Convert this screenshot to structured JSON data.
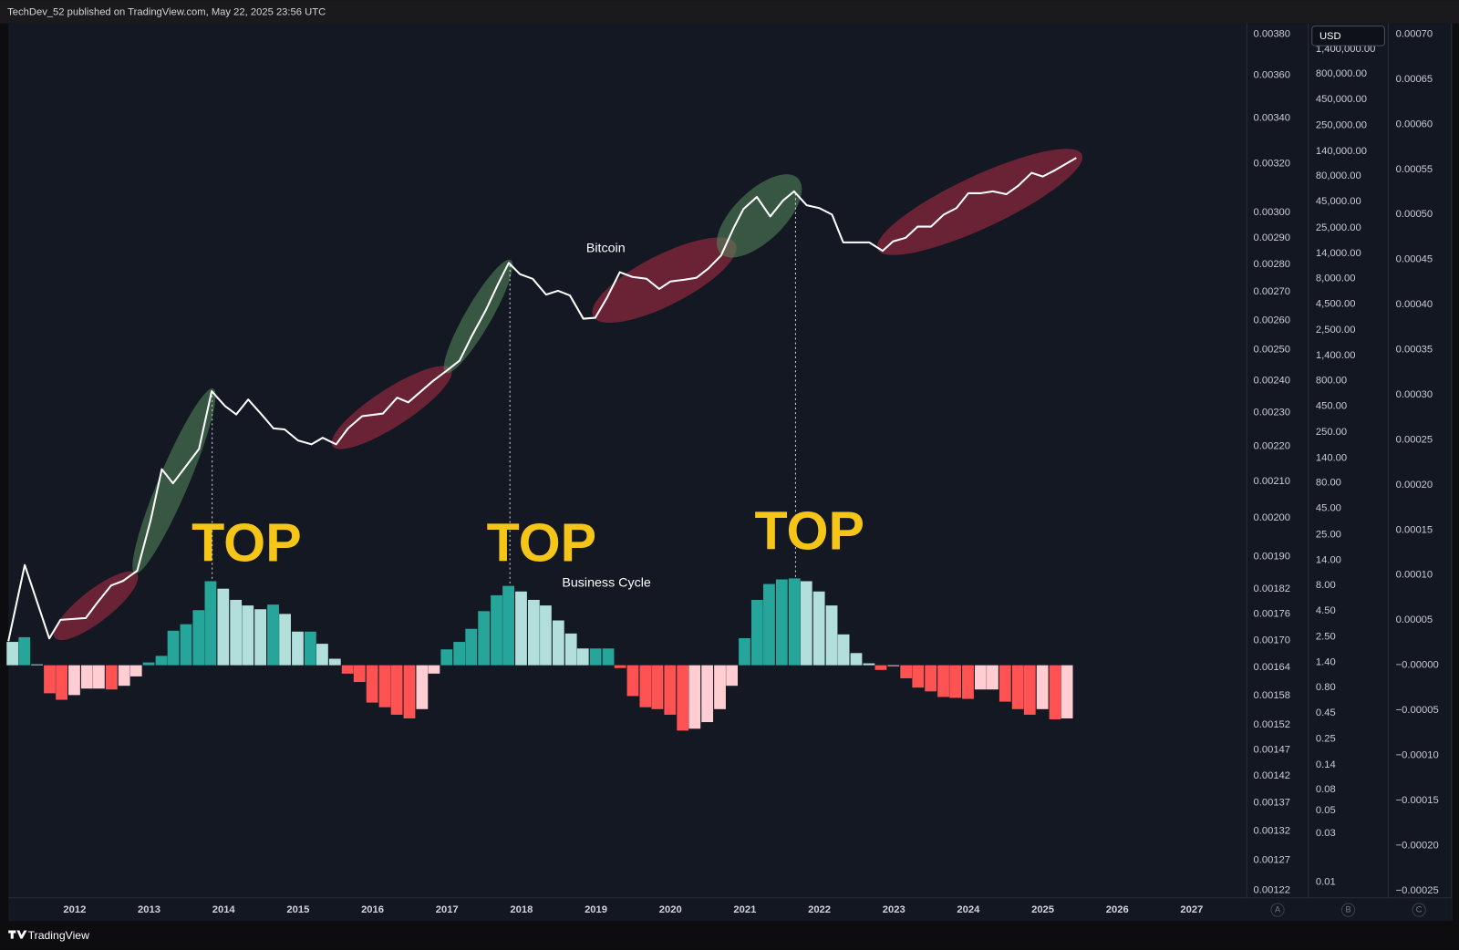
{
  "page": {
    "header": "TechDev_52 published on TradingView.com, May 22, 2025 23:56 UTC",
    "footer": "TradingView",
    "currency": "USD",
    "axis_letters": [
      "A",
      "B",
      "C"
    ]
  },
  "chart_data": [
    {
      "type": "line",
      "title": "Bitcoin",
      "color": "#ffffff",
      "log_scale": true,
      "grid": false,
      "annotations": [
        "TOP",
        "TOP",
        "TOP"
      ],
      "x": [
        2011.11,
        2011.33,
        2011.66,
        2011.81,
        2012.15,
        2012.31,
        2012.49,
        2012.65,
        2012.84,
        2013.02,
        2013.17,
        2013.32,
        2013.67,
        2013.84,
        2014.02,
        2014.17,
        2014.33,
        2014.51,
        2014.67,
        2014.82,
        2015.0,
        2015.18,
        2015.33,
        2015.51,
        2015.67,
        2015.86,
        2016.14,
        2016.33,
        2016.48,
        2016.81,
        2017.01,
        2017.17,
        2017.33,
        2017.52,
        2017.69,
        2017.83,
        2017.98,
        2018.15,
        2018.33,
        2018.49,
        2018.65,
        2018.83,
        2018.99,
        2019.15,
        2019.32,
        2019.49,
        2019.68,
        2019.85,
        2020.0,
        2020.19,
        2020.35,
        2020.51,
        2020.68,
        2020.85,
        2020.98,
        2021.16,
        2021.34,
        2021.51,
        2021.66,
        2021.83,
        2022.0,
        2022.17,
        2022.32,
        2022.67,
        2022.85,
        2022.99,
        2023.16,
        2023.32,
        2023.5,
        2023.67,
        2023.84,
        2024.0,
        2024.17,
        2024.33,
        2024.51,
        2024.67,
        2024.85,
        2025.0,
        2025.17,
        2025.45
      ],
      "values": [
        2.26,
        12.6,
        2.41,
        3.66,
        3.82,
        5.45,
        7.94,
        8.82,
        11.1,
        34.4,
        109,
        79.4,
        172,
        631,
        452,
        374,
        523,
        374,
        273,
        267,
        208,
        191,
        221,
        191,
        273,
        359,
        382,
        545,
        491,
        794,
        1020,
        1260,
        2170,
        3900,
        7160,
        11350,
        8810,
        7940,
        5560,
        6050,
        5450,
        3230,
        3300,
        5220,
        9200,
        8280,
        7940,
        6310,
        7460,
        7780,
        8110,
        10000,
        13400,
        25100,
        38200,
        50100,
        32300,
        46100,
        56900,
        41500,
        39000,
        33700,
        18000,
        18000,
        14900,
        18400,
        20000,
        25700,
        25700,
        33700,
        39000,
        54500,
        54500,
        56900,
        53300,
        64400,
        86300,
        79400,
        92000,
        120800
      ],
      "xlim": [
        2011.11,
        2027.74
      ],
      "xticks": [
        2012,
        2013,
        2014,
        2015,
        2016,
        2017,
        2018,
        2019,
        2020,
        2021,
        2022,
        2023,
        2024,
        2025,
        2026,
        2027
      ],
      "ylim": [
        0.007,
        2500000
      ],
      "yticks": [
        0.01,
        0.03,
        0.05,
        0.08,
        0.14,
        0.25,
        0.45,
        {
          "value": 0.8,
          "label": "0.80"
        },
        {
          "value": 1.4,
          "label": "1.40"
        },
        {
          "value": 2.5,
          "label": "2.50"
        },
        {
          "value": 4.5,
          "label": "4.50"
        },
        {
          "value": 8,
          "label": "8.00"
        },
        {
          "value": 14,
          "label": "14.00"
        },
        {
          "value": 25,
          "label": "25.00"
        },
        {
          "value": 45,
          "label": "45.00"
        },
        {
          "value": 80,
          "label": "80.00"
        },
        {
          "value": 140,
          "label": "140.00"
        },
        {
          "value": 250,
          "label": "250.00"
        },
        {
          "value": 450,
          "label": "450.00"
        },
        {
          "value": 800,
          "label": "800.00"
        },
        {
          "value": 1400,
          "label": "1,400.00"
        },
        {
          "value": 2500,
          "label": "2,500.00"
        },
        {
          "value": 4500,
          "label": "4,500.00"
        },
        {
          "value": 8000,
          "label": "8,000.00"
        },
        {
          "value": 14000,
          "label": "14,000.00"
        },
        {
          "value": 25000,
          "label": "25,000.00"
        },
        {
          "value": 45000,
          "label": "45,000.00"
        },
        {
          "value": 80000,
          "label": "80,000.00"
        },
        {
          "value": 140000,
          "label": "140,000.00"
        },
        {
          "value": 250000,
          "label": "250,000.00"
        },
        {
          "value": 450000,
          "label": "450,000.00"
        },
        {
          "value": 800000,
          "label": "800,000.00"
        },
        {
          "value": 1400000,
          "label": "1,400,000.00"
        }
      ],
      "y2log": true,
      "y2lim": [
        0.001208,
        0.003856
      ],
      "y2ticks": [
        {
          "value": 0.0038,
          "label": "0.00380"
        },
        {
          "value": 0.0036,
          "label": "0.00360"
        },
        {
          "value": 0.0034,
          "label": "0.00340"
        },
        {
          "value": 0.0032,
          "label": "0.00320"
        },
        {
          "value": 0.003,
          "label": "0.00300"
        },
        {
          "value": 0.0029,
          "label": "0.00290"
        },
        {
          "value": 0.0028,
          "label": "0.00280"
        },
        {
          "value": 0.0027,
          "label": "0.00270"
        },
        {
          "value": 0.0026,
          "label": "0.00260"
        },
        {
          "value": 0.0025,
          "label": "0.00250"
        },
        {
          "value": 0.0024,
          "label": "0.00240"
        },
        {
          "value": 0.0023,
          "label": "0.00230"
        },
        {
          "value": 0.0022,
          "label": "0.00220"
        },
        {
          "value": 0.0021,
          "label": "0.00210"
        },
        {
          "value": 0.002,
          "label": "0.00200"
        },
        {
          "value": 0.0019,
          "label": "0.00190"
        },
        {
          "value": 0.00182,
          "label": "0.00182"
        },
        {
          "value": 0.00176,
          "label": "0.00176"
        },
        {
          "value": 0.0017,
          "label": "0.00170"
        },
        {
          "value": 0.00164,
          "label": "0.00164"
        },
        {
          "value": 0.00158,
          "label": "0.00158"
        },
        {
          "value": 0.00152,
          "label": "0.00152"
        },
        {
          "value": 0.00147,
          "label": "0.00147"
        },
        {
          "value": 0.00142,
          "label": "0.00142"
        },
        {
          "value": 0.00137,
          "label": "0.00137"
        },
        {
          "value": 0.00132,
          "label": "0.00132"
        },
        {
          "value": 0.00127,
          "label": "0.00127"
        },
        {
          "value": 0.00122,
          "label": "0.00122"
        }
      ]
    },
    {
      "type": "bar",
      "title": "Business Cycle",
      "colors": {
        "rising_positive": "#26a69a",
        "falling_positive": "#b2dfdb",
        "falling_negative": "#ff5252",
        "rising_negative": "#ffcdd2"
      },
      "x": [
        2011.17,
        2011.33,
        2011.5,
        2011.67,
        2011.83,
        2012,
        2012.17,
        2012.33,
        2012.5,
        2012.67,
        2012.83,
        2013,
        2013.17,
        2013.33,
        2013.5,
        2013.67,
        2013.83,
        2014,
        2014.17,
        2014.33,
        2014.5,
        2014.67,
        2014.83,
        2015,
        2015.17,
        2015.33,
        2015.5,
        2015.67,
        2015.83,
        2016,
        2016.17,
        2016.33,
        2016.5,
        2016.67,
        2016.83,
        2017,
        2017.17,
        2017.33,
        2017.5,
        2017.67,
        2017.83,
        2018,
        2018.17,
        2018.33,
        2018.5,
        2018.67,
        2018.83,
        2019,
        2019.17,
        2019.33,
        2019.5,
        2019.67,
        2019.83,
        2020,
        2020.17,
        2020.33,
        2020.5,
        2020.67,
        2020.83,
        2021,
        2021.17,
        2021.33,
        2021.5,
        2021.67,
        2021.83,
        2022,
        2022.17,
        2022.33,
        2022.5,
        2022.67,
        2022.83,
        2023,
        2023.17,
        2023.33,
        2023.5,
        2023.67,
        2023.83,
        2024,
        2024.17,
        2024.33,
        2024.5,
        2024.67,
        2024.83,
        2025,
        2025.17,
        2025.33
      ],
      "values": [
        2.59e-05,
        3.11e-05,
        1e-06,
        -3.11e-05,
        -3.83e-05,
        -3.31e-05,
        -2.59e-05,
        -2.59e-05,
        -2.69e-05,
        -2.28e-05,
        -1.24e-05,
        3.1e-06,
        1.04e-05,
        3.83e-05,
        4.55e-05,
        6.11e-05,
        9.32e-05,
        8.49e-05,
        7.25e-05,
        6.63e-05,
        6.21e-05,
        6.73e-05,
        5.69e-05,
        3.73e-05,
        3.73e-05,
        2.38e-05,
        7.2e-06,
        -9.3e-06,
        -1.86e-05,
        -4.14e-05,
        -4.66e-05,
        -5.49e-05,
        -5.9e-05,
        -4.87e-05,
        -9.3e-06,
        1.76e-05,
        2.59e-05,
        4.04e-05,
        6e-05,
        7.76e-05,
        8.8e-05,
        8.18e-05,
        7.25e-05,
        6.63e-05,
        4.97e-05,
        3.52e-05,
        1.86e-05,
        1.86e-05,
        1.86e-05,
        -3.1e-06,
        -3.42e-05,
        -4.66e-05,
        -4.87e-05,
        -5.49e-05,
        -7.25e-05,
        -7.04e-05,
        -6.31e-05,
        -4.87e-05,
        -2.28e-05,
        3e-05,
        7.25e-05,
        9.01e-05,
        9.52e-05,
        9.63e-05,
        9.32e-05,
        8.18e-05,
        6.63e-05,
        3.42e-05,
        1.35e-05,
        2.1e-06,
        -5.2e-06,
        -1e-06,
        -1.45e-05,
        -2.48e-05,
        -2.9e-05,
        -3.52e-05,
        -3.62e-05,
        -3.73e-05,
        -2.69e-05,
        -2.69e-05,
        -4.04e-05,
        -4.87e-05,
        -5.49e-05,
        -4.87e-05,
        -6e-05,
        -5.9e-05
      ],
      "xlim": [
        2011.11,
        2027.74
      ],
      "ylim": [
        -0.000258,
        0.000712
      ],
      "yticks": [
        {
          "value": 0.0007,
          "label": "0.00070"
        },
        {
          "value": 0.00065,
          "label": "0.00065"
        },
        {
          "value": 0.0006,
          "label": "0.00060"
        },
        {
          "value": 0.00055,
          "label": "0.00055"
        },
        {
          "value": 0.0005,
          "label": "0.00050"
        },
        {
          "value": 0.00045,
          "label": "0.00045"
        },
        {
          "value": 0.0004,
          "label": "0.00040"
        },
        {
          "value": 0.00035,
          "label": "0.00035"
        },
        {
          "value": 0.0003,
          "label": "0.00030"
        },
        {
          "value": 0.00025,
          "label": "0.00025"
        },
        {
          "value": 0.0002,
          "label": "0.00020"
        },
        {
          "value": 0.00015,
          "label": "0.00015"
        },
        {
          "value": 0.0001,
          "label": "0.00010"
        },
        {
          "value": 5e-05,
          "label": "0.00005"
        },
        {
          "value": 0,
          "label": "−0.00000"
        },
        {
          "value": -5e-05,
          "label": "−0.00005"
        },
        {
          "value": -0.0001,
          "label": "−0.00010"
        },
        {
          "value": -0.00015,
          "label": "−0.00015"
        },
        {
          "value": -0.0002,
          "label": "−0.00020"
        },
        {
          "value": -0.00025,
          "label": "−0.00025"
        }
      ]
    }
  ]
}
